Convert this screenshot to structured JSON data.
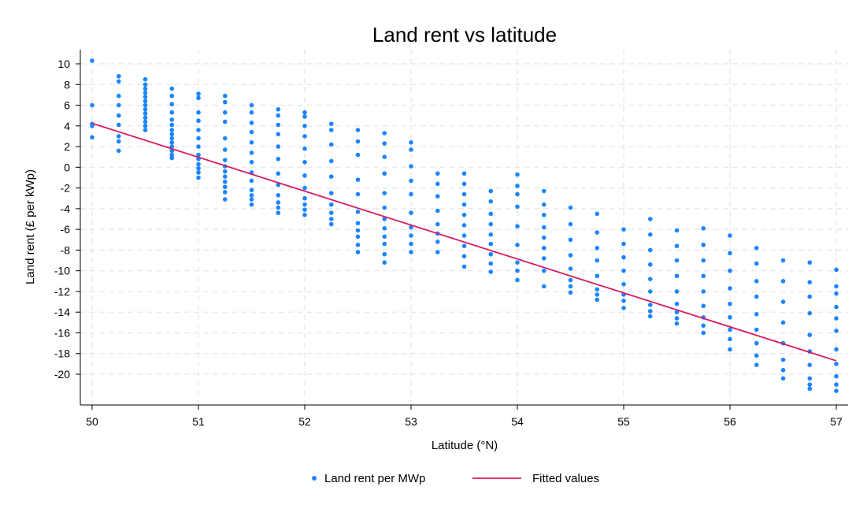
{
  "chart_data": {
    "type": "scatter",
    "title": "Land rent vs latitude",
    "xlabel": "Latitude (°N)",
    "ylabel": "Land rent (£ per kWp)",
    "xlim": [
      50,
      57
    ],
    "ylim": [
      -22.5,
      11.3
    ],
    "xticks": [
      50,
      51,
      52,
      53,
      54,
      55,
      56,
      57
    ],
    "yticks": [
      10,
      8,
      6,
      4,
      2,
      0,
      -2,
      -4,
      -6,
      -8,
      -10,
      -12,
      -14,
      -16,
      -18,
      -20
    ],
    "grid": true,
    "legend_position": "bottom",
    "series": [
      {
        "name": "Land rent per MWp",
        "kind": "scatter",
        "color": "#1a85ff",
        "points": [
          [
            50.0,
            10.3
          ],
          [
            50.0,
            6.0
          ],
          [
            50.0,
            4.2
          ],
          [
            50.0,
            4.0
          ],
          [
            50.0,
            2.9
          ],
          [
            50.25,
            8.8
          ],
          [
            50.25,
            8.3
          ],
          [
            50.25,
            6.9
          ],
          [
            50.25,
            6.0
          ],
          [
            50.25,
            5.0
          ],
          [
            50.25,
            4.1
          ],
          [
            50.25,
            3.0
          ],
          [
            50.25,
            2.5
          ],
          [
            50.25,
            1.6
          ],
          [
            50.5,
            8.5
          ],
          [
            50.5,
            8.0
          ],
          [
            50.5,
            7.6
          ],
          [
            50.5,
            7.2
          ],
          [
            50.5,
            6.8
          ],
          [
            50.5,
            6.4
          ],
          [
            50.5,
            6.0
          ],
          [
            50.5,
            5.6
          ],
          [
            50.5,
            5.2
          ],
          [
            50.5,
            4.8
          ],
          [
            50.5,
            4.4
          ],
          [
            50.5,
            4.0
          ],
          [
            50.5,
            3.6
          ],
          [
            50.75,
            7.6
          ],
          [
            50.75,
            6.9
          ],
          [
            50.75,
            6.1
          ],
          [
            50.75,
            5.3
          ],
          [
            50.75,
            4.6
          ],
          [
            50.75,
            4.1
          ],
          [
            50.75,
            3.6
          ],
          [
            50.75,
            3.2
          ],
          [
            50.75,
            2.8
          ],
          [
            50.75,
            2.4
          ],
          [
            50.75,
            2.0
          ],
          [
            50.75,
            1.6
          ],
          [
            50.75,
            1.2
          ],
          [
            50.75,
            0.9
          ],
          [
            51.0,
            7.1
          ],
          [
            51.0,
            6.7
          ],
          [
            51.0,
            5.3
          ],
          [
            51.0,
            4.5
          ],
          [
            51.0,
            3.6
          ],
          [
            51.0,
            2.8
          ],
          [
            51.0,
            2.0
          ],
          [
            51.0,
            1.2
          ],
          [
            51.0,
            0.8
          ],
          [
            51.0,
            0.3
          ],
          [
            51.0,
            -0.1
          ],
          [
            51.0,
            -0.5
          ],
          [
            51.0,
            -1.0
          ],
          [
            51.25,
            6.9
          ],
          [
            51.25,
            6.3
          ],
          [
            51.25,
            5.3
          ],
          [
            51.25,
            4.4
          ],
          [
            51.25,
            2.8
          ],
          [
            51.25,
            1.7
          ],
          [
            51.25,
            0.7
          ],
          [
            51.25,
            0.1
          ],
          [
            51.25,
            -0.4
          ],
          [
            51.25,
            -0.9
          ],
          [
            51.25,
            -1.4
          ],
          [
            51.25,
            -1.9
          ],
          [
            51.25,
            -2.4
          ],
          [
            51.25,
            -3.1
          ],
          [
            51.5,
            6.0
          ],
          [
            51.5,
            5.3
          ],
          [
            51.5,
            4.3
          ],
          [
            51.5,
            3.4
          ],
          [
            51.5,
            2.4
          ],
          [
            51.5,
            1.4
          ],
          [
            51.5,
            0.5
          ],
          [
            51.5,
            -0.5
          ],
          [
            51.5,
            -1.3
          ],
          [
            51.5,
            -2.2
          ],
          [
            51.5,
            -2.7
          ],
          [
            51.5,
            -3.1
          ],
          [
            51.5,
            -3.6
          ],
          [
            51.75,
            5.6
          ],
          [
            51.75,
            5.0
          ],
          [
            51.75,
            4.1
          ],
          [
            51.75,
            3.2
          ],
          [
            51.75,
            2.0
          ],
          [
            51.75,
            0.8
          ],
          [
            51.75,
            -0.6
          ],
          [
            51.75,
            -1.7
          ],
          [
            51.75,
            -2.7
          ],
          [
            51.75,
            -3.4
          ],
          [
            51.75,
            -3.9
          ],
          [
            51.75,
            -4.4
          ],
          [
            52.0,
            5.3
          ],
          [
            52.0,
            4.9
          ],
          [
            52.0,
            4.0
          ],
          [
            52.0,
            3.0
          ],
          [
            52.0,
            1.8
          ],
          [
            52.0,
            0.5
          ],
          [
            52.0,
            -0.8
          ],
          [
            52.0,
            -2.0
          ],
          [
            52.0,
            -3.0
          ],
          [
            52.0,
            -3.6
          ],
          [
            52.0,
            -4.1
          ],
          [
            52.0,
            -4.6
          ],
          [
            52.25,
            4.2
          ],
          [
            52.25,
            3.6
          ],
          [
            52.25,
            2.2
          ],
          [
            52.25,
            0.6
          ],
          [
            52.25,
            -0.9
          ],
          [
            52.25,
            -2.5
          ],
          [
            52.25,
            -3.6
          ],
          [
            52.25,
            -4.4
          ],
          [
            52.25,
            -5.0
          ],
          [
            52.25,
            -5.5
          ],
          [
            52.5,
            3.6
          ],
          [
            52.5,
            2.5
          ],
          [
            52.5,
            1.2
          ],
          [
            52.5,
            -1.2
          ],
          [
            52.5,
            -2.6
          ],
          [
            52.5,
            -4.3
          ],
          [
            52.5,
            -5.4
          ],
          [
            52.5,
            -6.1
          ],
          [
            52.5,
            -6.7
          ],
          [
            52.5,
            -7.5
          ],
          [
            52.5,
            -8.2
          ],
          [
            52.75,
            3.3
          ],
          [
            52.75,
            2.3
          ],
          [
            52.75,
            1.0
          ],
          [
            52.75,
            -0.6
          ],
          [
            52.75,
            -2.5
          ],
          [
            52.75,
            -3.9
          ],
          [
            52.75,
            -5.0
          ],
          [
            52.75,
            -5.9
          ],
          [
            52.75,
            -6.7
          ],
          [
            52.75,
            -7.4
          ],
          [
            52.75,
            -8.4
          ],
          [
            52.75,
            -9.2
          ],
          [
            53.0,
            2.4
          ],
          [
            53.0,
            1.7
          ],
          [
            53.0,
            0.1
          ],
          [
            53.0,
            -1.3
          ],
          [
            53.0,
            -2.6
          ],
          [
            53.0,
            -4.4
          ],
          [
            53.0,
            -5.8
          ],
          [
            53.0,
            -6.6
          ],
          [
            53.0,
            -7.4
          ],
          [
            53.0,
            -8.2
          ],
          [
            53.25,
            -0.6
          ],
          [
            53.25,
            -1.6
          ],
          [
            53.25,
            -2.8
          ],
          [
            53.25,
            -4.2
          ],
          [
            53.25,
            -5.5
          ],
          [
            53.25,
            -6.4
          ],
          [
            53.25,
            -7.2
          ],
          [
            53.25,
            -8.2
          ],
          [
            53.5,
            -0.6
          ],
          [
            53.5,
            -1.6
          ],
          [
            53.5,
            -2.6
          ],
          [
            53.5,
            -3.6
          ],
          [
            53.5,
            -4.6
          ],
          [
            53.5,
            -5.6
          ],
          [
            53.5,
            -6.6
          ],
          [
            53.5,
            -7.6
          ],
          [
            53.5,
            -8.6
          ],
          [
            53.5,
            -9.6
          ],
          [
            53.75,
            -2.3
          ],
          [
            53.75,
            -3.3
          ],
          [
            53.75,
            -4.5
          ],
          [
            53.75,
            -5.5
          ],
          [
            53.75,
            -6.5
          ],
          [
            53.75,
            -7.4
          ],
          [
            53.75,
            -8.4
          ],
          [
            53.75,
            -9.3
          ],
          [
            53.75,
            -10.1
          ],
          [
            54.0,
            -0.7
          ],
          [
            54.0,
            -1.8
          ],
          [
            54.0,
            -2.6
          ],
          [
            54.0,
            -3.8
          ],
          [
            54.0,
            -5.7
          ],
          [
            54.0,
            -7.5
          ],
          [
            54.0,
            -9.2
          ],
          [
            54.0,
            -10.0
          ],
          [
            54.0,
            -10.9
          ],
          [
            54.25,
            -2.3
          ],
          [
            54.25,
            -3.6
          ],
          [
            54.25,
            -4.6
          ],
          [
            54.25,
            -5.8
          ],
          [
            54.25,
            -6.8
          ],
          [
            54.25,
            -7.8
          ],
          [
            54.25,
            -8.8
          ],
          [
            54.25,
            -10.0
          ],
          [
            54.25,
            -11.5
          ],
          [
            54.5,
            -3.9
          ],
          [
            54.5,
            -5.5
          ],
          [
            54.5,
            -7.0
          ],
          [
            54.5,
            -8.5
          ],
          [
            54.5,
            -9.8
          ],
          [
            54.5,
            -10.9
          ],
          [
            54.5,
            -11.5
          ],
          [
            54.5,
            -12.1
          ],
          [
            54.75,
            -4.5
          ],
          [
            54.75,
            -6.3
          ],
          [
            54.75,
            -7.8
          ],
          [
            54.75,
            -9.0
          ],
          [
            54.75,
            -10.5
          ],
          [
            54.75,
            -11.8
          ],
          [
            54.75,
            -12.3
          ],
          [
            54.75,
            -12.8
          ],
          [
            55.0,
            -6.0
          ],
          [
            55.0,
            -7.4
          ],
          [
            55.0,
            -8.7
          ],
          [
            55.0,
            -10.0
          ],
          [
            55.0,
            -11.3
          ],
          [
            55.0,
            -12.3
          ],
          [
            55.0,
            -12.9
          ],
          [
            55.0,
            -13.6
          ],
          [
            55.25,
            -5.0
          ],
          [
            55.25,
            -6.5
          ],
          [
            55.25,
            -8.0
          ],
          [
            55.25,
            -9.4
          ],
          [
            55.25,
            -10.8
          ],
          [
            55.25,
            -12.0
          ],
          [
            55.25,
            -13.3
          ],
          [
            55.25,
            -13.9
          ],
          [
            55.25,
            -14.4
          ],
          [
            55.5,
            -6.1
          ],
          [
            55.5,
            -7.6
          ],
          [
            55.5,
            -9.0
          ],
          [
            55.5,
            -10.5
          ],
          [
            55.5,
            -12.0
          ],
          [
            55.5,
            -13.2
          ],
          [
            55.5,
            -14.0
          ],
          [
            55.5,
            -14.6
          ],
          [
            55.5,
            -15.1
          ],
          [
            55.75,
            -5.9
          ],
          [
            55.75,
            -7.5
          ],
          [
            55.75,
            -9.0
          ],
          [
            55.75,
            -10.5
          ],
          [
            55.75,
            -12.0
          ],
          [
            55.75,
            -13.4
          ],
          [
            55.75,
            -14.5
          ],
          [
            55.75,
            -15.3
          ],
          [
            55.75,
            -16.0
          ],
          [
            56.0,
            -6.6
          ],
          [
            56.0,
            -8.3
          ],
          [
            56.0,
            -10.0
          ],
          [
            56.0,
            -11.7
          ],
          [
            56.0,
            -13.2
          ],
          [
            56.0,
            -14.5
          ],
          [
            56.0,
            -15.7
          ],
          [
            56.0,
            -16.6
          ],
          [
            56.0,
            -17.6
          ],
          [
            56.25,
            -7.8
          ],
          [
            56.25,
            -9.3
          ],
          [
            56.25,
            -11.0
          ],
          [
            56.25,
            -12.5
          ],
          [
            56.25,
            -14.2
          ],
          [
            56.25,
            -15.7
          ],
          [
            56.25,
            -17.0
          ],
          [
            56.25,
            -18.2
          ],
          [
            56.25,
            -19.1
          ],
          [
            56.5,
            -9.0
          ],
          [
            56.5,
            -11.0
          ],
          [
            56.5,
            -13.0
          ],
          [
            56.5,
            -15.0
          ],
          [
            56.5,
            -17.0
          ],
          [
            56.5,
            -18.6
          ],
          [
            56.5,
            -19.6
          ],
          [
            56.5,
            -20.4
          ],
          [
            56.75,
            -9.2
          ],
          [
            56.75,
            -11.1
          ],
          [
            56.75,
            -12.5
          ],
          [
            56.75,
            -14.1
          ],
          [
            56.75,
            -16.2
          ],
          [
            56.75,
            -17.8
          ],
          [
            56.75,
            -19.1
          ],
          [
            56.75,
            -20.4
          ],
          [
            56.75,
            -21.0
          ],
          [
            56.75,
            -21.4
          ],
          [
            57.0,
            -9.9
          ],
          [
            57.0,
            -11.5
          ],
          [
            57.0,
            -12.2
          ],
          [
            57.0,
            -13.5
          ],
          [
            57.0,
            -14.6
          ],
          [
            57.0,
            -15.8
          ],
          [
            57.0,
            -17.6
          ],
          [
            57.0,
            -19.0
          ],
          [
            57.0,
            -20.2
          ],
          [
            57.0,
            -21.0
          ],
          [
            57.0,
            -21.6
          ]
        ]
      },
      {
        "name": "Fitted values",
        "kind": "line",
        "color": "#d81b60",
        "points": [
          [
            50.0,
            4.25
          ],
          [
            57.0,
            -18.7
          ]
        ]
      }
    ]
  }
}
